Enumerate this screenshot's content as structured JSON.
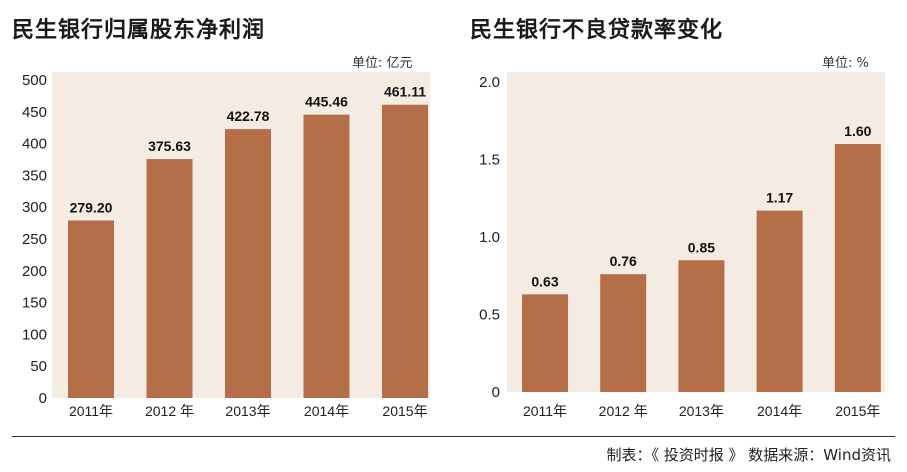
{
  "chart_data": [
    {
      "type": "bar",
      "title": "民生银行归属股东净利润",
      "unit": "单位: 亿元",
      "categories": [
        "2011年",
        "2012 年",
        "2013年",
        "2014年",
        "2015年"
      ],
      "values": [
        279.2,
        375.63,
        422.78,
        445.46,
        461.11
      ],
      "value_labels": [
        "279.20",
        "375.63",
        "422.78",
        "445.46",
        "461.11"
      ],
      "yticks": [
        "0",
        "50",
        "100",
        "150",
        "200",
        "250",
        "300",
        "350",
        "400",
        "450",
        "500"
      ],
      "ylim": [
        0,
        500
      ],
      "grid": false,
      "bar_color": "#b46e48",
      "background": "#f4ece3"
    },
    {
      "type": "bar",
      "title": "民生银行不良贷款率变化",
      "unit": "单位: %",
      "categories": [
        "2011年",
        "2012 年",
        "2013年",
        "2014年",
        "2015年"
      ],
      "values": [
        0.63,
        0.76,
        0.85,
        1.17,
        1.6
      ],
      "value_labels": [
        "0.63",
        "0.76",
        "0.85",
        "1.17",
        "1.60"
      ],
      "yticks": [
        "0",
        "0.5",
        "1.0",
        "1.5",
        "2.0"
      ],
      "ylim": [
        0,
        2.0
      ],
      "grid": false,
      "bar_color": "#b46e48",
      "background": "#f4ece3"
    }
  ],
  "footer": "制表：《 投资时报 》  数据来源：Wind资讯"
}
